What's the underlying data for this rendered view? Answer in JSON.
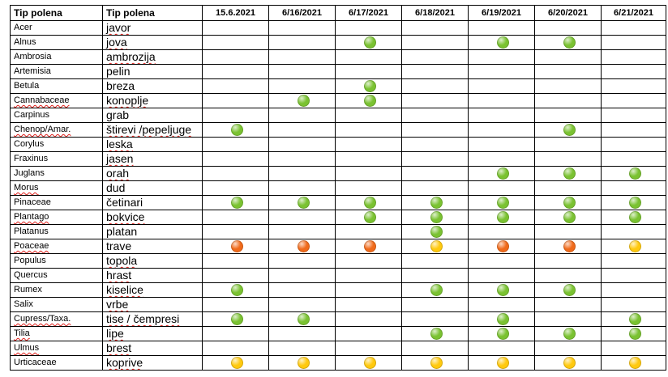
{
  "table": {
    "header": {
      "latin": "Tip polena",
      "local": "Tip polena",
      "dates": [
        "15.6.2021",
        "6/16/2021",
        "6/17/2021",
        "6/18/2021",
        "6/19/2021",
        "6/20/2021",
        "6/21/2021"
      ]
    },
    "colors": {
      "green": "#7ac231",
      "orange": "#f06a1a",
      "yellow": "#ffc90e"
    },
    "rows": [
      {
        "latin": "Acer",
        "local": "javor",
        "levels": [
          "",
          "",
          "",
          "",
          "",
          "",
          ""
        ]
      },
      {
        "latin": "Alnus",
        "local": "jova",
        "levels": [
          "",
          "",
          "green",
          "",
          "green",
          "green",
          ""
        ]
      },
      {
        "latin": "Ambrosia",
        "local": "ambrozija",
        "levels": [
          "",
          "",
          "",
          "",
          "",
          "",
          ""
        ]
      },
      {
        "latin": "Artemisia",
        "local": "pelin",
        "levels": [
          "",
          "",
          "",
          "",
          "",
          "",
          ""
        ]
      },
      {
        "latin": "Betula",
        "local": "breza",
        "levels": [
          "",
          "",
          "green",
          "",
          "",
          "",
          ""
        ]
      },
      {
        "latin": "Cannabaceae",
        "local": "konoplje",
        "levels": [
          "",
          "green",
          "green",
          "",
          "",
          "",
          ""
        ]
      },
      {
        "latin": "Carpinus",
        "local": "grab",
        "levels": [
          "",
          "",
          "",
          "",
          "",
          "",
          ""
        ]
      },
      {
        "latin": "Chenop/Amar.",
        "local": "štirevi /pepeljuge",
        "levels": [
          "green",
          "",
          "",
          "",
          "",
          "green",
          ""
        ]
      },
      {
        "latin": "Corylus",
        "local": "leska",
        "levels": [
          "",
          "",
          "",
          "",
          "",
          "",
          ""
        ]
      },
      {
        "latin": "Fraxinus",
        "local": "jasen",
        "levels": [
          "",
          "",
          "",
          "",
          "",
          "",
          ""
        ]
      },
      {
        "latin": "Juglans",
        "local": "orah",
        "levels": [
          "",
          "",
          "",
          "",
          "green",
          "green",
          "green"
        ]
      },
      {
        "latin": "Morus",
        "local": "dud",
        "levels": [
          "",
          "",
          "",
          "",
          "",
          "",
          ""
        ]
      },
      {
        "latin": "Pinaceae",
        "local": "četinari",
        "levels": [
          "green",
          "green",
          "green",
          "green",
          "green",
          "green",
          "green"
        ]
      },
      {
        "latin": "Plantago",
        "local": "bokvice",
        "levels": [
          "",
          "",
          "green",
          "green",
          "green",
          "green",
          "green"
        ]
      },
      {
        "latin": "Platanus",
        "local": "platan",
        "levels": [
          "",
          "",
          "",
          "green",
          "",
          "",
          ""
        ]
      },
      {
        "latin": "Poaceae",
        "local": "trave",
        "levels": [
          "orange",
          "orange",
          "orange",
          "yellow",
          "orange",
          "orange",
          "yellow"
        ]
      },
      {
        "latin": "Populus",
        "local": "topola",
        "levels": [
          "",
          "",
          "",
          "",
          "",
          "",
          ""
        ]
      },
      {
        "latin": "Quercus",
        "local": "hrast",
        "levels": [
          "",
          "",
          "",
          "",
          "",
          "",
          ""
        ]
      },
      {
        "latin": "Rumex",
        "local": "kiselice",
        "levels": [
          "green",
          "",
          "",
          "green",
          "green",
          "green",
          ""
        ]
      },
      {
        "latin": "Salix",
        "local": "vrbe",
        "levels": [
          "",
          "",
          "",
          "",
          "",
          "",
          ""
        ]
      },
      {
        "latin": "Cupress/Taxa.",
        "local": "tise / čempresi",
        "levels": [
          "green",
          "green",
          "",
          "",
          "green",
          "",
          "green"
        ]
      },
      {
        "latin": "Tilia",
        "local": "lipe",
        "levels": [
          "",
          "",
          "",
          "green",
          "green",
          "green",
          "green"
        ]
      },
      {
        "latin": "Ulmus",
        "local": "brest",
        "levels": [
          "",
          "",
          "",
          "",
          "",
          "",
          ""
        ]
      },
      {
        "latin": "Urticaceae",
        "local": "koprive",
        "levels": [
          "yellow",
          "yellow",
          "yellow",
          "yellow",
          "yellow",
          "yellow",
          "yellow"
        ]
      }
    ]
  }
}
